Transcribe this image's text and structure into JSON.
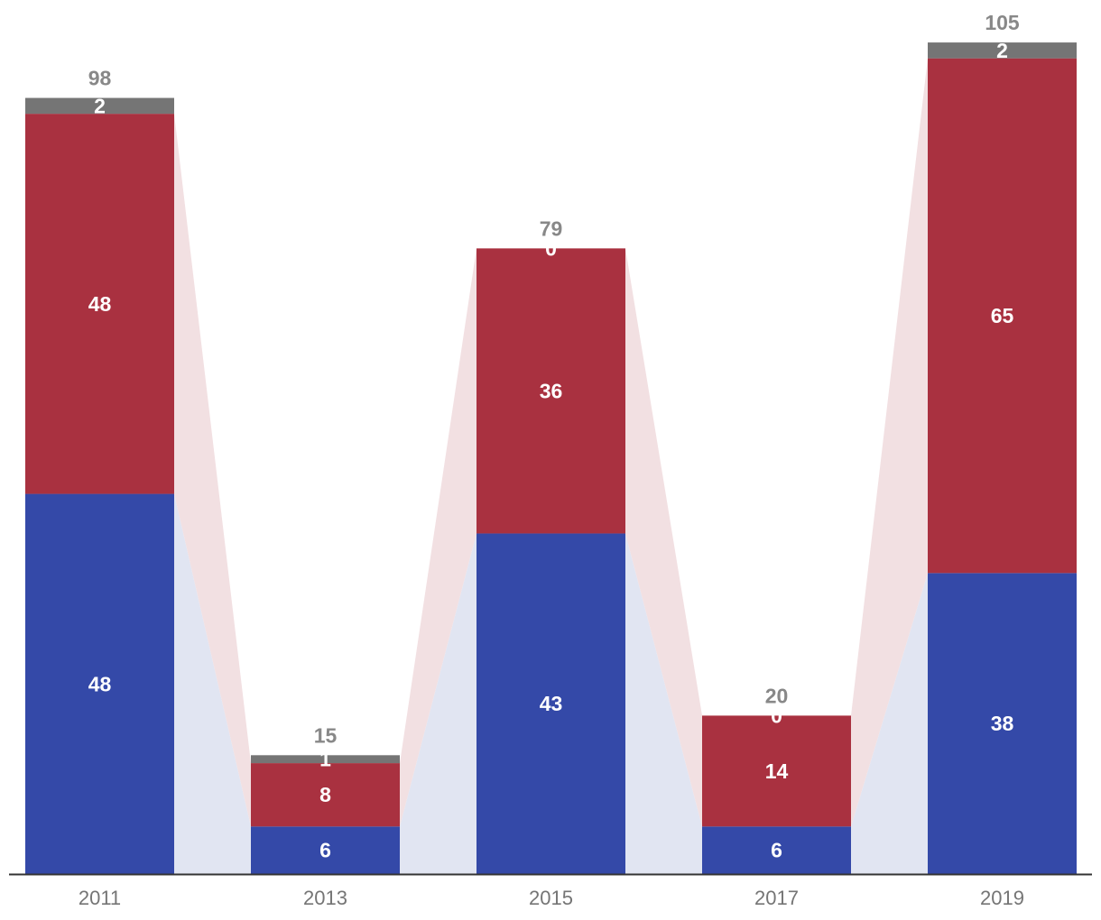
{
  "chart_data": {
    "type": "bar",
    "stacked": true,
    "categories": [
      "2011",
      "2013",
      "2015",
      "2017",
      "2019"
    ],
    "series": [
      {
        "values": [
          48,
          6,
          43,
          6,
          38
        ]
      },
      {
        "values": [
          48,
          8,
          36,
          14,
          65
        ]
      },
      {
        "values": [
          2,
          1,
          0,
          0,
          2
        ]
      }
    ],
    "totals": [
      98,
      15,
      79,
      20,
      105
    ],
    "ylim": [
      0,
      110
    ],
    "grid": false,
    "legend": "none",
    "colors": {
      "series": [
        "#3449a8",
        "#a93140",
        "#757575"
      ],
      "bands": [
        "#e1e5f2",
        "#f2e0e2"
      ],
      "total_label": "#888888",
      "tick_label": "#757575",
      "axis": "#333333"
    }
  }
}
